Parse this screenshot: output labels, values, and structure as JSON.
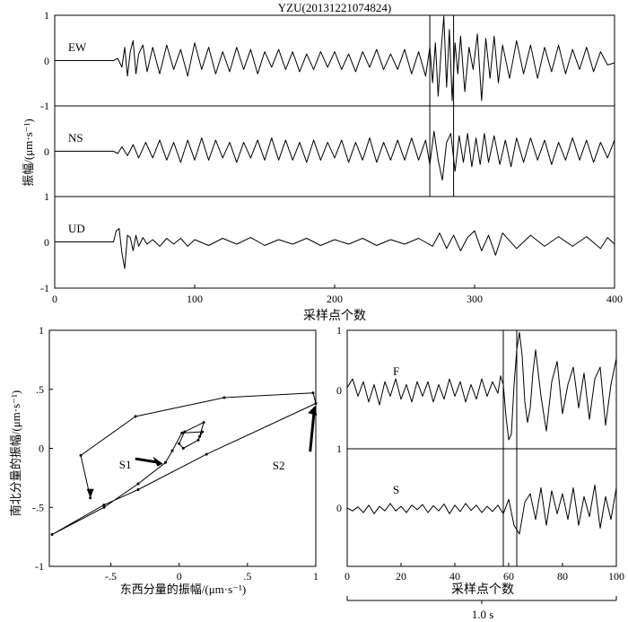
{
  "figure": {
    "title": "YZU(20131221074824)",
    "top_ylabel": "振幅/(μm·s⁻¹)",
    "top_xlabel": "采样点个数",
    "bl_xlabel": "东西分量的振幅/(μm·s⁻¹)",
    "bl_ylabel": "南北分量的振幅/(μm·s⁻¹)",
    "br_xlabel": "采样点个数",
    "br_duration": "1.0 s",
    "annotations": {
      "s1": "S1",
      "s2": "S2"
    }
  },
  "chart_data": [
    {
      "type": "line",
      "panel": "seismogram-three-component",
      "title": "YZU(20131221074824)",
      "xlabel": "采样点个数",
      "ylabel": "振幅/(μm·s⁻¹)",
      "xlim": [
        0,
        400
      ],
      "ylim": [
        -1,
        1
      ],
      "xticks": [
        0,
        100,
        200,
        300,
        400
      ],
      "yticks": [
        -1,
        0,
        1
      ],
      "window_markers_x": [
        268,
        285
      ],
      "series": [
        {
          "name": "EW",
          "x": [
            0,
            42,
            45,
            48,
            50,
            52,
            54,
            56,
            58,
            60,
            63,
            66,
            70,
            75,
            80,
            85,
            90,
            95,
            100,
            105,
            110,
            115,
            120,
            125,
            130,
            135,
            140,
            145,
            150,
            155,
            160,
            165,
            170,
            175,
            180,
            185,
            190,
            195,
            200,
            205,
            210,
            215,
            220,
            225,
            230,
            235,
            240,
            245,
            250,
            255,
            260,
            265,
            268,
            270,
            272,
            274,
            276,
            278,
            280,
            282,
            284,
            286,
            288,
            290,
            293,
            296,
            299,
            302,
            305,
            308,
            311,
            314,
            317,
            320,
            325,
            330,
            335,
            340,
            345,
            350,
            355,
            360,
            365,
            370,
            375,
            380,
            385,
            390,
            395,
            400
          ],
          "values": [
            0,
            0,
            0.05,
            -0.15,
            0.3,
            -0.35,
            0.2,
            0.45,
            -0.3,
            0.15,
            0.35,
            -0.25,
            0.3,
            -0.3,
            0.35,
            -0.2,
            0.25,
            -0.35,
            0.4,
            -0.2,
            0.3,
            -0.3,
            0.2,
            -0.25,
            0.3,
            -0.2,
            0.25,
            -0.3,
            0.2,
            -0.15,
            0.25,
            -0.2,
            0.2,
            -0.25,
            0.15,
            -0.2,
            0.2,
            -0.15,
            0.2,
            -0.2,
            0.15,
            -0.25,
            0.2,
            -0.15,
            0.25,
            -0.2,
            0.15,
            -0.2,
            0.25,
            -0.3,
            0.2,
            -0.35,
            0.3,
            -0.5,
            0.4,
            -0.8,
            0.2,
            1.0,
            -0.6,
            0.7,
            -0.9,
            0.4,
            -0.3,
            0.55,
            -0.7,
            0.3,
            -0.2,
            0.6,
            -0.9,
            0.5,
            -0.4,
            0.55,
            -0.5,
            0.35,
            -0.4,
            0.45,
            -0.3,
            0.35,
            -0.4,
            0.3,
            -0.25,
            0.35,
            -0.3,
            0.25,
            -0.2,
            0.3,
            -0.25,
            0.2,
            -0.1,
            -0.05
          ]
        },
        {
          "name": "NS",
          "x": [
            0,
            42,
            45,
            48,
            52,
            56,
            60,
            65,
            70,
            75,
            80,
            85,
            90,
            95,
            100,
            105,
            110,
            115,
            120,
            125,
            130,
            135,
            140,
            145,
            150,
            155,
            160,
            165,
            170,
            175,
            180,
            185,
            190,
            195,
            200,
            205,
            210,
            215,
            220,
            225,
            230,
            235,
            240,
            245,
            250,
            255,
            260,
            265,
            268,
            271,
            274,
            277,
            280,
            283,
            286,
            289,
            292,
            295,
            298,
            301,
            304,
            307,
            310,
            314,
            318,
            322,
            326,
            330,
            335,
            340,
            345,
            350,
            355,
            360,
            365,
            370,
            375,
            380,
            385,
            390,
            395,
            400
          ],
          "values": [
            0,
            0,
            -0.05,
            0.1,
            -0.1,
            0.15,
            -0.15,
            0.2,
            -0.15,
            0.25,
            -0.2,
            0.2,
            -0.25,
            0.25,
            -0.2,
            0.3,
            -0.2,
            0.25,
            -0.15,
            0.2,
            -0.25,
            0.2,
            -0.15,
            0.25,
            -0.2,
            0.3,
            -0.2,
            0.25,
            -0.2,
            0.2,
            -0.25,
            0.25,
            -0.2,
            0.2,
            -0.15,
            0.25,
            -0.25,
            0.2,
            -0.2,
            0.3,
            -0.25,
            0.2,
            -0.2,
            0.25,
            -0.2,
            0.3,
            -0.2,
            0.25,
            -0.3,
            0.45,
            -0.2,
            -0.65,
            0.2,
            0.4,
            -0.45,
            0.35,
            -0.25,
            0.4,
            -0.35,
            0.3,
            -0.3,
            0.4,
            -0.25,
            0.35,
            -0.3,
            0.25,
            -0.35,
            0.3,
            -0.25,
            0.3,
            -0.2,
            0.25,
            -0.3,
            0.2,
            -0.2,
            0.3,
            -0.2,
            0.25,
            -0.25,
            0.2,
            -0.15,
            0.25
          ]
        },
        {
          "name": "UD",
          "x": [
            0,
            42,
            44,
            46,
            48,
            50,
            52,
            54,
            56,
            58,
            60,
            63,
            66,
            70,
            75,
            80,
            85,
            90,
            95,
            100,
            110,
            120,
            130,
            140,
            150,
            160,
            170,
            180,
            190,
            200,
            210,
            220,
            230,
            240,
            250,
            260,
            270,
            275,
            280,
            285,
            290,
            295,
            300,
            305,
            310,
            315,
            320,
            330,
            340,
            350,
            360,
            370,
            380,
            390,
            395,
            400
          ],
          "values": [
            0,
            0,
            0.25,
            0.3,
            -0.25,
            -0.6,
            0.15,
            0.1,
            -0.2,
            0.15,
            -0.1,
            0.1,
            -0.05,
            0.05,
            -0.1,
            0.08,
            -0.05,
            0.08,
            -0.1,
            0.05,
            -0.08,
            0.08,
            -0.05,
            0.1,
            -0.08,
            0.05,
            -0.05,
            0.08,
            -0.08,
            0.05,
            -0.05,
            0.08,
            -0.08,
            0.05,
            -0.05,
            0.08,
            -0.1,
            0.2,
            -0.15,
            0.15,
            -0.2,
            0.1,
            0.25,
            -0.2,
            0.15,
            -0.3,
            0.2,
            -0.15,
            0.15,
            -0.1,
            0.12,
            -0.1,
            0.12,
            -0.15,
            0.1,
            -0.05
          ]
        }
      ]
    },
    {
      "type": "line",
      "panel": "particle-motion",
      "xlabel": "东西分量的振幅/(μm·s⁻¹)",
      "ylabel": "南北分量的振幅/(μm·s⁻¹)",
      "xlim": [
        -0.95,
        1
      ],
      "ylim": [
        -1,
        1
      ],
      "xticks": [
        -0.5,
        0,
        0.5,
        1
      ],
      "yticks": [
        -1,
        -0.5,
        0,
        0.5,
        1
      ],
      "x": [
        0.15,
        0.18,
        0.04,
        0,
        0.03,
        0.14,
        0.17,
        0.02,
        -0.05,
        -0.1,
        -0.3,
        -0.55,
        -0.93,
        -0.55,
        -0.3,
        0.2,
        1.0,
        0.98,
        0.33,
        -0.32,
        -0.72,
        -0.65
      ],
      "y": [
        0.1,
        0.22,
        0.14,
        0.04,
        0,
        0.07,
        0.14,
        0.13,
        -0.02,
        -0.12,
        -0.3,
        -0.5,
        -0.73,
        -0.48,
        -0.35,
        -0.05,
        0.38,
        0.47,
        0.43,
        0.27,
        -0.06,
        -0.42
      ],
      "annotations": [
        {
          "text": "S1",
          "x": -0.4,
          "y": -0.05
        },
        {
          "text": "S2",
          "x": 0.88,
          "y": 0.2
        }
      ]
    },
    {
      "type": "line",
      "panel": "rotated-components",
      "xlabel": "采样点个数",
      "xlim": [
        0,
        100
      ],
      "ylim": [
        -1,
        1
      ],
      "xticks": [
        0,
        20,
        40,
        60,
        80,
        100
      ],
      "yticks": [
        0,
        1
      ],
      "window_markers_x": [
        58,
        63
      ],
      "duration_label": "1.0 s",
      "series": [
        {
          "name": "F",
          "x": [
            0,
            2,
            4,
            6,
            8,
            10,
            12,
            14,
            16,
            18,
            20,
            22,
            24,
            26,
            28,
            30,
            32,
            34,
            36,
            38,
            40,
            42,
            44,
            46,
            48,
            50,
            52,
            54,
            56,
            57,
            58,
            59,
            60,
            61,
            62,
            63,
            64,
            65,
            66,
            67,
            68,
            69,
            70,
            72,
            74,
            76,
            78,
            80,
            82,
            84,
            86,
            88,
            90,
            92,
            94,
            96,
            98,
            100
          ],
          "values": [
            0.05,
            0.2,
            -0.1,
            0.15,
            -0.2,
            0.1,
            -0.25,
            0.15,
            -0.1,
            0.2,
            -0.15,
            0.1,
            -0.2,
            0.15,
            -0.1,
            0.15,
            -0.2,
            0.1,
            -0.15,
            0.2,
            -0.1,
            0.15,
            -0.2,
            0.1,
            -0.15,
            0.2,
            -0.1,
            0.15,
            -0.05,
            0.25,
            0.1,
            -0.45,
            -0.85,
            -0.75,
            0.1,
            0.7,
            1.0,
            0.6,
            -0.2,
            -0.55,
            -0.3,
            0.3,
            0.7,
            -0.1,
            -0.7,
            0.15,
            0.5,
            -0.4,
            0.1,
            0.4,
            -0.3,
            0.3,
            -0.5,
            0.2,
            0.4,
            -0.6,
            0.1,
            0.55
          ]
        },
        {
          "name": "S",
          "x": [
            0,
            2,
            4,
            6,
            8,
            10,
            12,
            14,
            16,
            18,
            20,
            22,
            24,
            26,
            28,
            30,
            32,
            34,
            36,
            38,
            40,
            42,
            44,
            46,
            48,
            50,
            52,
            54,
            56,
            58,
            60,
            62,
            64,
            66,
            68,
            70,
            72,
            74,
            76,
            78,
            80,
            82,
            84,
            86,
            88,
            90,
            92,
            94,
            96,
            98,
            100
          ],
          "values": [
            0,
            -0.05,
            0.02,
            -0.08,
            0.05,
            -0.1,
            0.03,
            -0.05,
            0.08,
            -0.05,
            0.03,
            -0.08,
            0.05,
            -0.03,
            0.06,
            -0.08,
            0.04,
            -0.05,
            0.07,
            -0.1,
            0.05,
            -0.06,
            0.08,
            -0.04,
            0.05,
            -0.08,
            0.03,
            -0.06,
            0.05,
            -0.1,
            0.15,
            -0.3,
            -0.45,
            0.1,
            0.25,
            -0.2,
            0.35,
            -0.3,
            0.3,
            -0.1,
            0.25,
            -0.2,
            0.35,
            -0.3,
            0.2,
            -0.15,
            0.4,
            -0.35,
            0.2,
            -0.2,
            0.35
          ]
        }
      ]
    }
  ]
}
